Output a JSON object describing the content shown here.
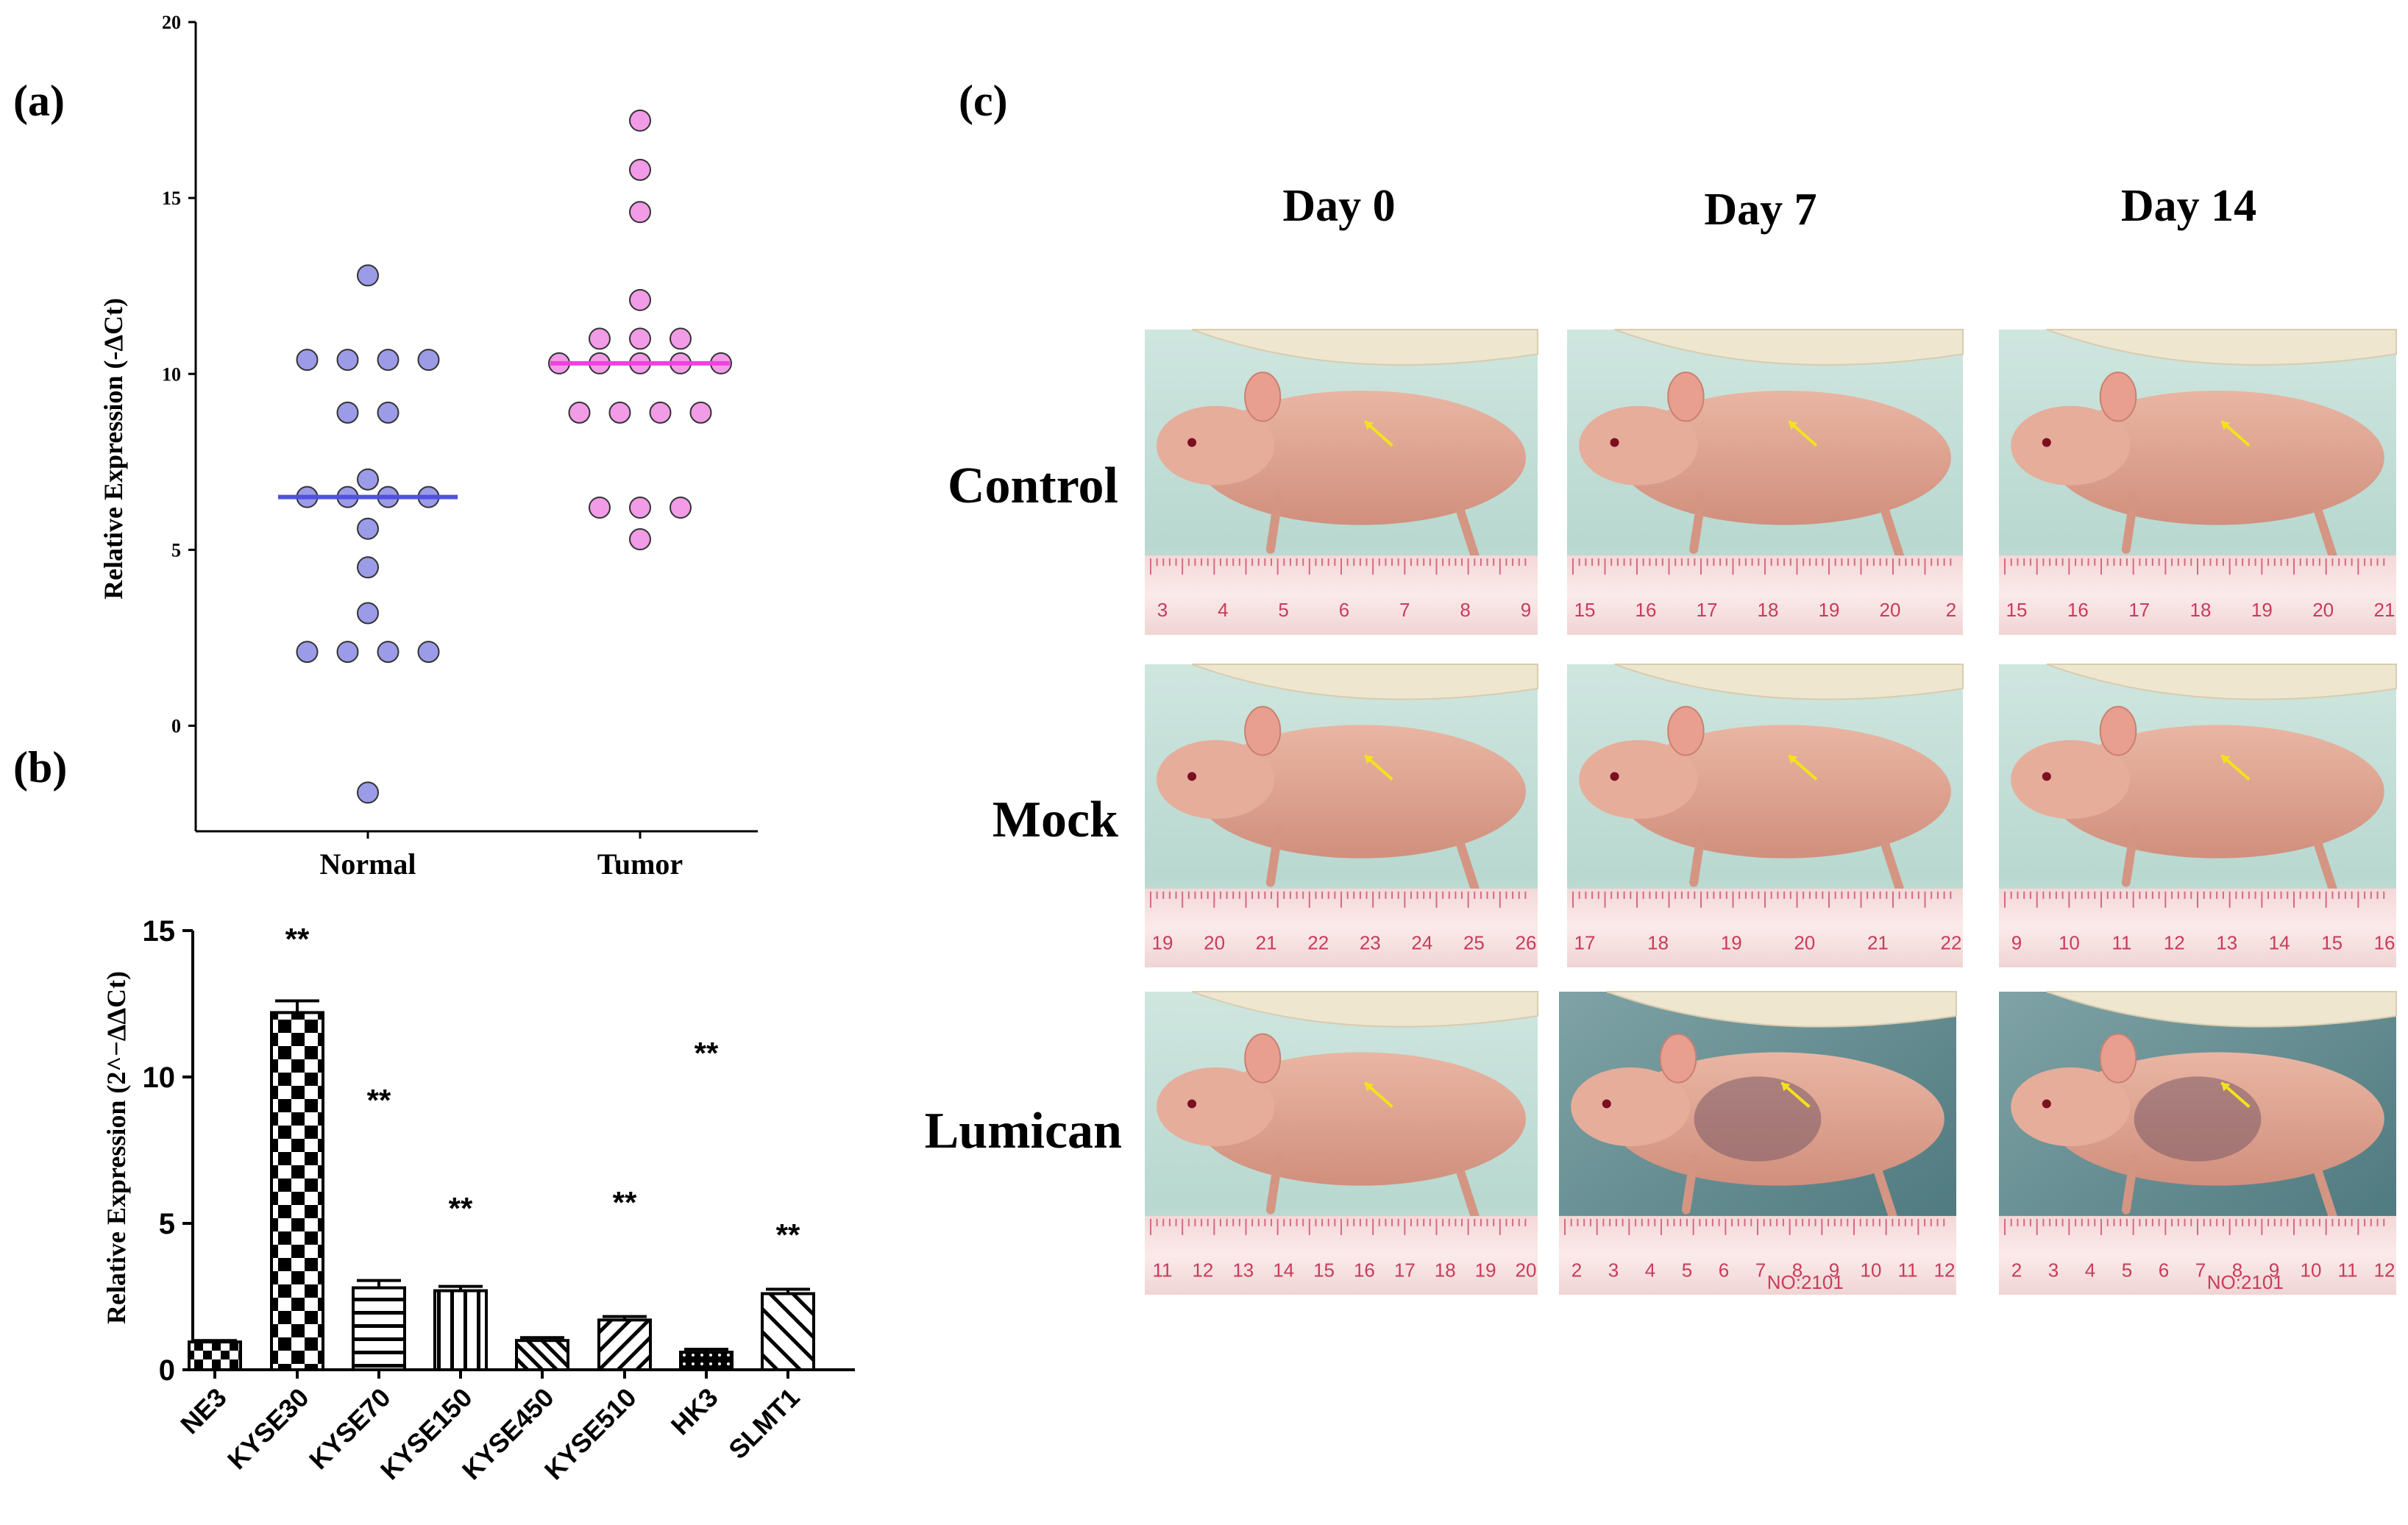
{
  "panels": {
    "a": "(a)",
    "b": "(b)",
    "c": "(c)"
  },
  "chart_data": [
    {
      "type": "scatter",
      "panel": "(a)",
      "ylabel": "Relative Expression (-ΔCt)",
      "ylim": [
        -3,
        20
      ],
      "yticks": [
        0,
        5,
        10,
        15,
        20
      ],
      "categories": [
        "Normal",
        "Tumor"
      ],
      "series": [
        {
          "name": "Normal",
          "color": "#9b9be8",
          "median": 6.5,
          "median_color": "#5050e0",
          "points": [
            {
              "offset": 0,
              "y": 12.8
            },
            {
              "offset": -1.5,
              "y": 10.4
            },
            {
              "offset": -0.5,
              "y": 10.4
            },
            {
              "offset": 0.5,
              "y": 10.4
            },
            {
              "offset": 1.5,
              "y": 10.4
            },
            {
              "offset": -0.5,
              "y": 8.9
            },
            {
              "offset": 0.5,
              "y": 8.9
            },
            {
              "offset": 0,
              "y": 7.0
            },
            {
              "offset": -1.5,
              "y": 6.5
            },
            {
              "offset": -0.5,
              "y": 6.5
            },
            {
              "offset": 0.5,
              "y": 6.5
            },
            {
              "offset": 1.5,
              "y": 6.5
            },
            {
              "offset": 0,
              "y": 5.6
            },
            {
              "offset": 0,
              "y": 4.5
            },
            {
              "offset": 0,
              "y": 3.2
            },
            {
              "offset": -1.5,
              "y": 2.1
            },
            {
              "offset": -0.5,
              "y": 2.1
            },
            {
              "offset": 0.5,
              "y": 2.1
            },
            {
              "offset": 1.5,
              "y": 2.1
            },
            {
              "offset": 0,
              "y": -1.9
            }
          ]
        },
        {
          "name": "Tumor",
          "color": "#f29be6",
          "median": 10.3,
          "median_color": "#f040e0",
          "points": [
            {
              "offset": 0,
              "y": 17.2
            },
            {
              "offset": 0,
              "y": 15.8
            },
            {
              "offset": 0,
              "y": 14.6
            },
            {
              "offset": 0,
              "y": 12.1
            },
            {
              "offset": -1,
              "y": 11.0
            },
            {
              "offset": 0,
              "y": 11.0
            },
            {
              "offset": 1,
              "y": 11.0
            },
            {
              "offset": -2,
              "y": 10.3
            },
            {
              "offset": -1,
              "y": 10.3
            },
            {
              "offset": 0,
              "y": 10.3
            },
            {
              "offset": 1,
              "y": 10.3
            },
            {
              "offset": 2,
              "y": 10.3
            },
            {
              "offset": -1.5,
              "y": 8.9
            },
            {
              "offset": -0.5,
              "y": 8.9
            },
            {
              "offset": 0.5,
              "y": 8.9
            },
            {
              "offset": 1.5,
              "y": 8.9
            },
            {
              "offset": -1,
              "y": 6.2
            },
            {
              "offset": 0,
              "y": 6.2
            },
            {
              "offset": 1,
              "y": 6.2
            },
            {
              "offset": 0,
              "y": 5.3
            }
          ]
        }
      ]
    },
    {
      "type": "bar",
      "panel": "(b)",
      "ylabel": "Relative Expression (2^−ΔΔCt)",
      "ylim": [
        0,
        15
      ],
      "yticks": [
        0,
        5,
        10,
        15
      ],
      "categories": [
        "NE3",
        "KYSE30",
        "KYSE70",
        "KYSE150",
        "KYSE450",
        "KYSE510",
        "HK3",
        "SLMT1"
      ],
      "values": [
        0.95,
        12.2,
        2.8,
        2.7,
        1.0,
        1.7,
        0.6,
        2.6
      ],
      "errors": [
        0.05,
        0.4,
        0.25,
        0.15,
        0.1,
        0.12,
        0.1,
        0.15
      ],
      "patterns": [
        "check-small",
        "check-big",
        "h-lines",
        "v-lines",
        "diag-dense",
        "diag-back",
        "dots",
        "diag-cross"
      ],
      "significance": [
        "",
        "**",
        "**",
        "**",
        "",
        "**",
        "**",
        "**"
      ],
      "sig_heights": [
        0,
        14.7,
        9.2,
        5.5,
        0,
        5.7,
        10.8,
        4.6
      ]
    }
  ],
  "photos": {
    "columns": [
      "Day 0",
      "Day 7",
      "Day 14"
    ],
    "rows": [
      "Control",
      "Mock",
      "Lumican"
    ],
    "rulers": [
      [
        "3",
        "4",
        "5",
        "6",
        "7",
        "8",
        "9"
      ],
      [
        "15",
        "16",
        "17",
        "18",
        "19",
        "20",
        "2"
      ],
      [
        "15",
        "16",
        "17",
        "18",
        "19",
        "20",
        "21"
      ],
      [
        "19",
        "20",
        "21",
        "22",
        "23",
        "24",
        "25",
        "26"
      ],
      [
        "17",
        "18",
        "19",
        "20",
        "21",
        "22"
      ],
      [
        "9",
        "10",
        "11",
        "12",
        "13",
        "14",
        "15",
        "16"
      ],
      [
        "11",
        "12",
        "13",
        "14",
        "15",
        "16",
        "17",
        "18",
        "19",
        "20"
      ],
      [
        "2",
        "3",
        "4",
        "5",
        "6",
        "7",
        "8",
        "9",
        "10",
        "11",
        "12"
      ],
      [
        "2",
        "3",
        "4",
        "5",
        "6",
        "7",
        "8",
        "9",
        "10",
        "11",
        "12"
      ]
    ],
    "stamp": "NO:2101"
  }
}
